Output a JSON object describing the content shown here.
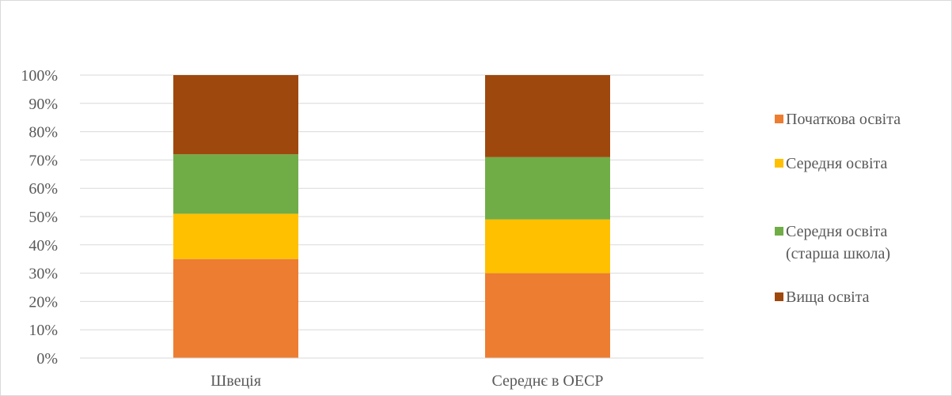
{
  "chart_data": {
    "type": "bar",
    "stacked": true,
    "percent_stacked": true,
    "categories": [
      "Швеція",
      "Середнє в ОЕСР"
    ],
    "series": [
      {
        "name": "Початкова освіта",
        "color": "#ED7D31",
        "values": [
          35,
          30
        ]
      },
      {
        "name": "Середня освіта",
        "color": "#FFC000",
        "values": [
          16,
          19
        ]
      },
      {
        "name": "Середня освіта (старша школа)",
        "color": "#70AD47",
        "values": [
          21,
          22
        ]
      },
      {
        "name": "Вища освіта",
        "color": "#9E480E",
        "values": [
          28,
          29
        ]
      }
    ],
    "ylim": [
      0,
      100
    ],
    "y_ticks": [
      "0%",
      "10%",
      "20%",
      "30%",
      "40%",
      "50%",
      "60%",
      "70%",
      "80%",
      "90%",
      "100%"
    ],
    "title": "",
    "xlabel": "",
    "ylabel": "",
    "grid": true,
    "legend_position": "right"
  }
}
